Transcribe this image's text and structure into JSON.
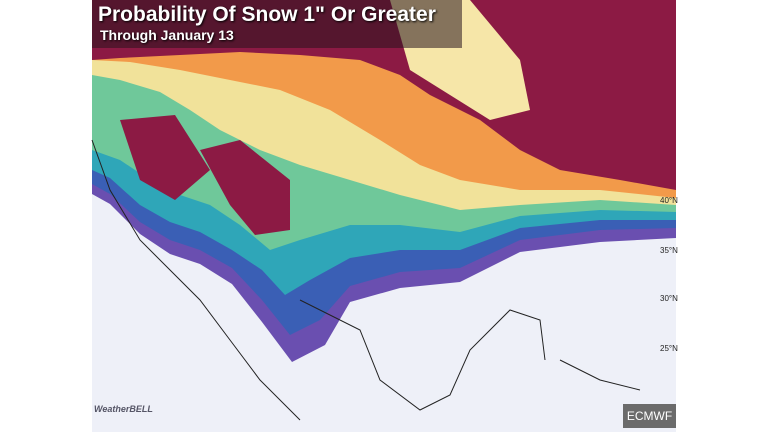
{
  "header": {
    "title": "Probability Of Snow 1\" Or Greater",
    "subtitle": "Through January 13"
  },
  "labels": {
    "latitudes": [
      "40°N",
      "35°N",
      "30°N",
      "25°N"
    ]
  },
  "source": "ECMWF",
  "logo": "WeatherBELL"
}
